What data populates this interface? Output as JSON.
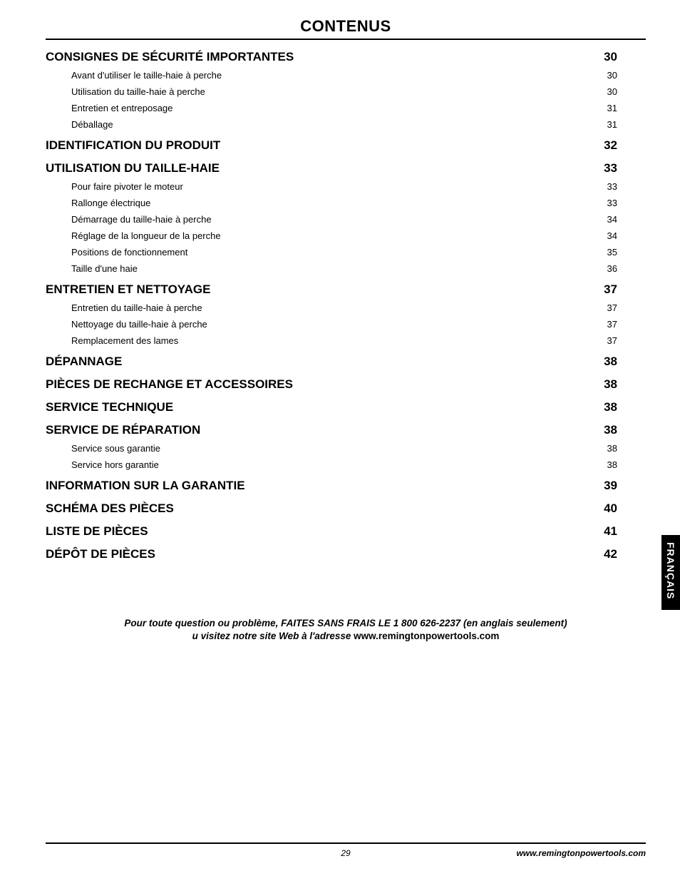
{
  "title": "CONTENUS",
  "side_tab": "FRANÇAIS",
  "toc": [
    {
      "level": "section",
      "label": "CONSIGNES DE SÉCURITÉ IMPORTANTES",
      "page": "30"
    },
    {
      "level": "sub",
      "label": "Avant d'utiliser le taille-haie à perche",
      "page": "30"
    },
    {
      "level": "sub",
      "label": "Utilisation du taille-haie à perche",
      "page": "30"
    },
    {
      "level": "sub",
      "label": "Entretien et entreposage",
      "page": "31"
    },
    {
      "level": "sub",
      "label": "Déballage",
      "page": "31"
    },
    {
      "level": "section",
      "label": "IDENTIFICATION DU PRODUIT",
      "page": "32"
    },
    {
      "level": "section",
      "label": "UTILISATION DU TAILLE-HAIE",
      "page": "33"
    },
    {
      "level": "sub",
      "label": "Pour faire pivoter le moteur",
      "page": "33"
    },
    {
      "level": "sub",
      "label": "Rallonge électrique",
      "page": "33"
    },
    {
      "level": "sub",
      "label": "Démarrage du taille-haie à perche",
      "page": "34"
    },
    {
      "level": "sub",
      "label": "Réglage de la longueur de la perche",
      "page": "34"
    },
    {
      "level": "sub",
      "label": "Positions de fonctionnement",
      "page": "35"
    },
    {
      "level": "sub",
      "label": "Taille d'une haie",
      "page": "36"
    },
    {
      "level": "section",
      "label": "ENTRETIEN ET NETTOYAGE",
      "page": "37"
    },
    {
      "level": "sub",
      "label": "Entretien du taille-haie à perche",
      "page": "37"
    },
    {
      "level": "sub",
      "label": "Nettoyage du taille-haie à perche",
      "page": "37"
    },
    {
      "level": "sub",
      "label": "Remplacement des lames",
      "page": "37"
    },
    {
      "level": "section",
      "label": "DÉPANNAGE",
      "page": "38"
    },
    {
      "level": "section",
      "label": "PIÈCES DE RECHANGE ET ACCESSOIRES",
      "page": "38"
    },
    {
      "level": "section",
      "label": "SERVICE TECHNIQUE",
      "page": "38"
    },
    {
      "level": "section",
      "label": "SERVICE DE RÉPARATION",
      "page": "38"
    },
    {
      "level": "sub",
      "label": "Service sous garantie",
      "page": "38"
    },
    {
      "level": "sub",
      "label": "Service hors garantie",
      "page": "38"
    },
    {
      "level": "section",
      "label": "INFORMATION SUR LA GARANTIE",
      "page": "39"
    },
    {
      "level": "section",
      "label": "SCHÉMA DES PIÈCES",
      "page": "40"
    },
    {
      "level": "section",
      "label": "LISTE DE PIÈCES",
      "page": "41"
    },
    {
      "level": "section",
      "label": "DÉPÔT DE PIÈCES",
      "page": "42"
    }
  ],
  "note_line1": "Pour toute question ou problème, FAITES SANS FRAIS LE 1 800 626-2237 (en anglais seulement)",
  "note_line2_prefix": "u visitez notre site Web à l'adresse ",
  "note_url": "www.remingtonpowertools.com",
  "footer": {
    "page_number": "29",
    "url": "www.remingtonpowertools.com"
  }
}
